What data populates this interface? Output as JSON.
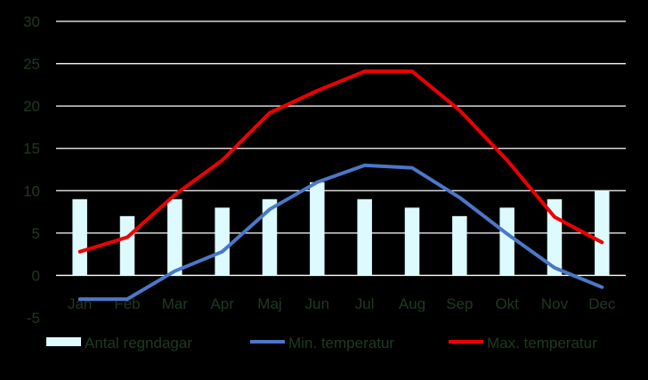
{
  "chart_data": {
    "type": "bar+line",
    "title": "",
    "xlabel": "",
    "ylabel": "",
    "ylim": [
      -5,
      30
    ],
    "yticks": [
      -5,
      0,
      5,
      10,
      15,
      20,
      25,
      30
    ],
    "grid": true,
    "legend_position": "bottom",
    "categories": [
      "Jan",
      "Feb",
      "Mar",
      "Apr",
      "Maj",
      "Jun",
      "Jul",
      "Aug",
      "Sep",
      "Okt",
      "Nov",
      "Dec"
    ],
    "series": [
      {
        "name": "Antal regndagar",
        "type": "bar",
        "color": "#ddfaff",
        "values": [
          9,
          7,
          9,
          8,
          9,
          11,
          9,
          8,
          7,
          8,
          9,
          10
        ]
      },
      {
        "name": "Min. temperatur",
        "type": "line",
        "color": "#4a78c8",
        "values": [
          -2.8,
          -2.8,
          0.5,
          2.8,
          7.8,
          11,
          13,
          12.7,
          9.2,
          4.9,
          0.9,
          -1.4
        ]
      },
      {
        "name": "Max. temperatur",
        "type": "line",
        "color": "#ee0000",
        "values": [
          2.8,
          4.5,
          9.5,
          13.6,
          19.2,
          21.8,
          24.1,
          24.1,
          19.5,
          13.6,
          6.9,
          3.9
        ]
      }
    ]
  },
  "colors": {
    "grid": "#ffffff",
    "text": "#1f3a1f",
    "background": "#000000"
  }
}
